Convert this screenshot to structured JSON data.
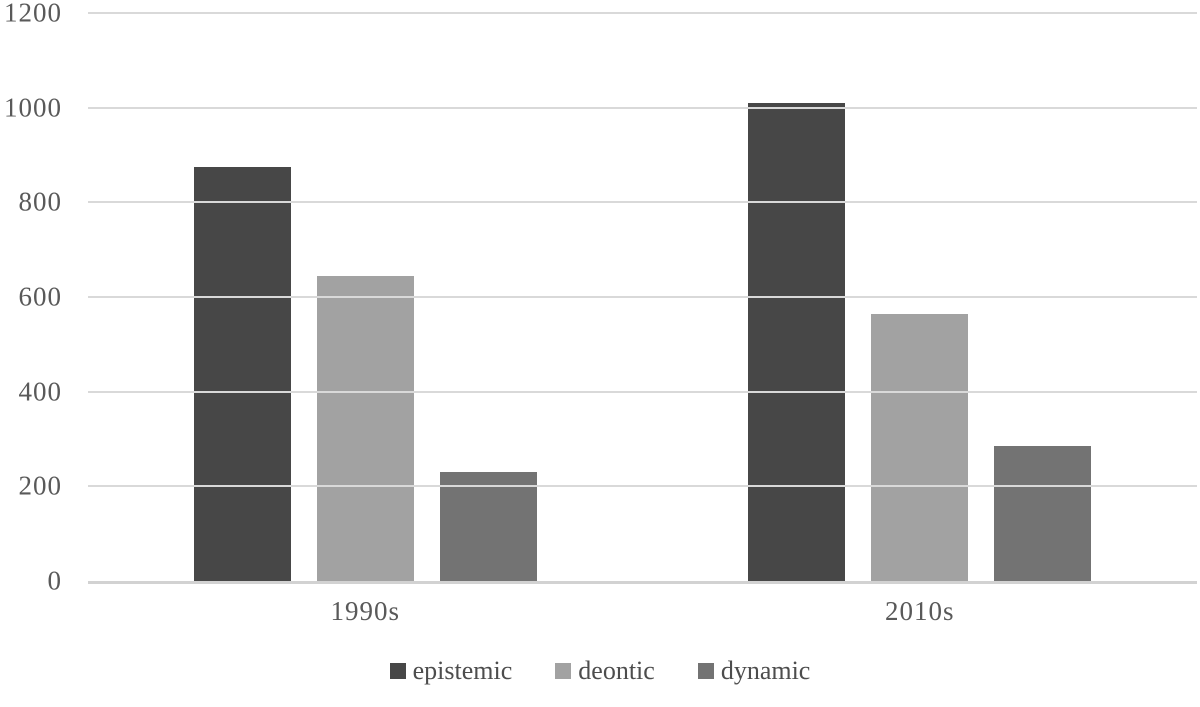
{
  "chart_data": {
    "type": "bar",
    "title": "",
    "xlabel": "",
    "ylabel": "",
    "categories": [
      "1990s",
      "2010s"
    ],
    "series": [
      {
        "name": "epistemic",
        "color": "#474747",
        "values": [
          875,
          1010
        ]
      },
      {
        "name": "deontic",
        "color": "#a2a2a2",
        "values": [
          645,
          565
        ]
      },
      {
        "name": "dynamic",
        "color": "#737373",
        "values": [
          230,
          285
        ]
      }
    ],
    "ylim": [
      0,
      1200
    ],
    "yticks": [
      0,
      200,
      400,
      600,
      800,
      1000,
      1200
    ],
    "grid": true,
    "legend_position": "bottom",
    "colors": {
      "gridline": "#d9d9d9",
      "axis_line": "#d2d2d2",
      "tick_text": "#595959",
      "legend_text": "#4d4d4d"
    }
  }
}
